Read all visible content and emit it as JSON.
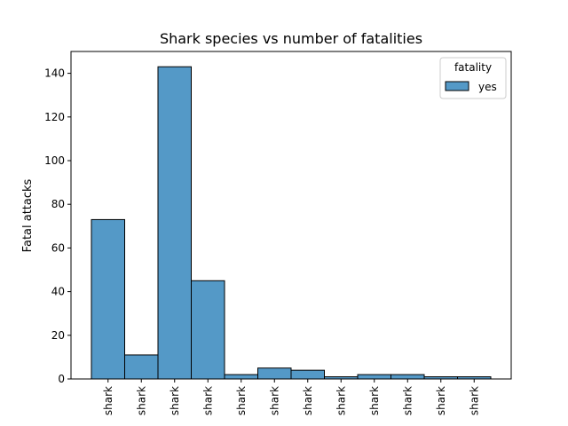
{
  "chart_data": {
    "type": "bar",
    "title": "Shark species vs number of fatalities",
    "xlabel": "",
    "ylabel": "Fatal attacks",
    "categories": [
      "shark",
      "shark",
      "shark",
      "shark",
      "shark",
      "shark",
      "shark",
      "shark",
      "shark",
      "shark",
      "shark",
      "shark"
    ],
    "series": [
      {
        "name": "yes",
        "values": [
          73,
          11,
          143,
          45,
          2,
          5,
          4,
          1,
          2,
          2,
          1,
          1
        ],
        "color": "#5499c7"
      }
    ],
    "ylim": [
      0,
      150
    ],
    "yticks": [
      0,
      20,
      40,
      60,
      80,
      100,
      120,
      140
    ],
    "grid": false,
    "legend": {
      "title": "fatality",
      "position": "top-right"
    }
  }
}
